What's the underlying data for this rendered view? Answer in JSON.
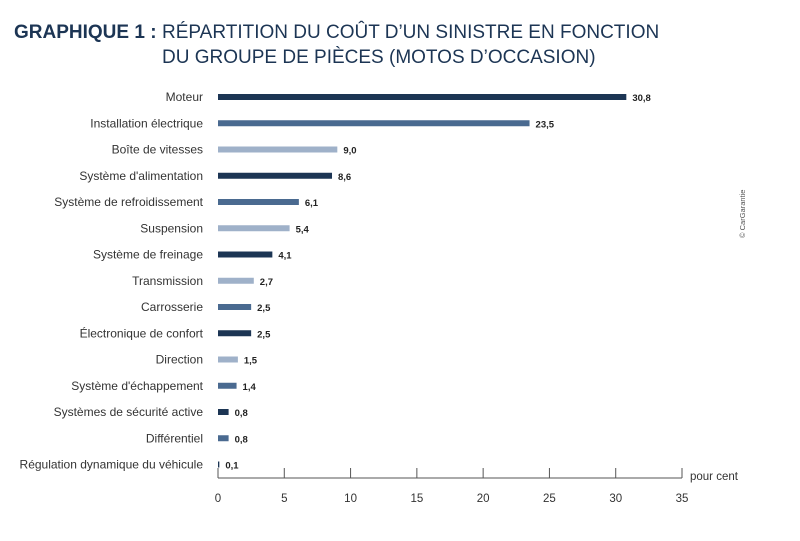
{
  "title": {
    "prefix": "GRAPHIQUE 1 :",
    "line1": "RÉPARTITION DU COÛT D’UN SINISTRE EN FONCTION",
    "line2": "DU GROUPE DE PIÈCES (MOTOS D’OCCASION)"
  },
  "copyright": "© CarGarantie",
  "chart_data": {
    "type": "bar",
    "orientation": "horizontal",
    "categories": [
      "Moteur",
      "Installation électrique",
      "Boîte de vitesses",
      "Système d'alimentation",
      "Système de refroidissement",
      "Suspension",
      "Système de freinage",
      "Transmission",
      "Carrosserie",
      "Électronique de confort",
      "Direction",
      "Système d'échappement",
      "Systèmes de sécurité active",
      "Différentiel",
      "Régulation dynamique du véhicule"
    ],
    "values": [
      30.8,
      23.5,
      9.0,
      8.6,
      6.1,
      5.4,
      4.1,
      2.7,
      2.5,
      2.5,
      1.5,
      1.4,
      0.8,
      0.8,
      0.1
    ],
    "value_labels": [
      "30,8",
      "23,5",
      "9,0",
      "8,6",
      "6,1",
      "5,4",
      "4,1",
      "2,7",
      "2,5",
      "2,5",
      "1,5",
      "1,4",
      "0,8",
      "0,8",
      "0,1"
    ],
    "bar_colors": [
      "#1c3554",
      "#4a6a90",
      "#9fb1c9",
      "#1c3554",
      "#4a6a90",
      "#9fb1c9",
      "#1c3554",
      "#9fb1c9",
      "#4a6a90",
      "#1c3554",
      "#9fb1c9",
      "#4a6a90",
      "#1c3554",
      "#4a6a90",
      "#1c3554"
    ],
    "xlim": [
      0,
      35
    ],
    "xticks": [
      0,
      5,
      10,
      15,
      20,
      25,
      30,
      35
    ],
    "xlabel": "pour cent",
    "grid": false
  }
}
